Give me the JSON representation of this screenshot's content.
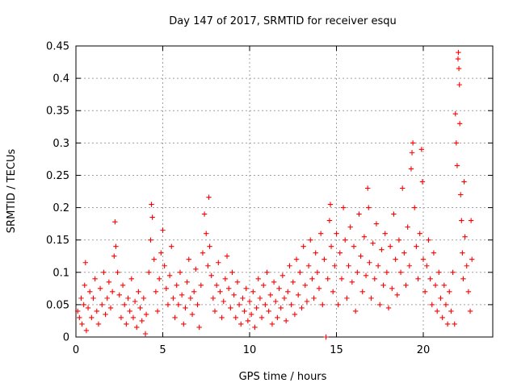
{
  "chart_data": {
    "type": "scatter",
    "title": "Day 147 of 2017, SRMTID for receiver esqu",
    "xlabel": "GPS time / hours",
    "ylabel": "SRMTID / TECUs",
    "xlim": [
      0,
      24
    ],
    "ylim": [
      0,
      0.45
    ],
    "x_ticks": [
      0,
      5,
      10,
      15,
      20
    ],
    "y_ticks": [
      0,
      0.05,
      0.1,
      0.15,
      0.2,
      0.25,
      0.3,
      0.35,
      0.4,
      0.45
    ],
    "x_tick_labels": [
      "0",
      "5",
      "10",
      "15",
      "20"
    ],
    "y_tick_labels": [
      "0",
      "0.05",
      "0.1",
      "0.15",
      "0.2",
      "0.25",
      "0.3",
      "0.35",
      "0.4",
      "0.45"
    ],
    "grid": true,
    "marker": "+",
    "series": [
      {
        "name": "SRMTID",
        "color": "#ff0000",
        "points": [
          [
            0.1,
            0.04
          ],
          [
            0.2,
            0.03
          ],
          [
            0.3,
            0.06
          ],
          [
            0.35,
            0.02
          ],
          [
            0.45,
            0.05
          ],
          [
            0.5,
            0.08
          ],
          [
            0.55,
            0.115
          ],
          [
            0.6,
            0.01
          ],
          [
            0.7,
            0.045
          ],
          [
            0.8,
            0.07
          ],
          [
            0.9,
            0.03
          ],
          [
            1.0,
            0.06
          ],
          [
            1.1,
            0.09
          ],
          [
            1.2,
            0.04
          ],
          [
            1.3,
            0.02
          ],
          [
            1.4,
            0.075
          ],
          [
            1.5,
            0.05
          ],
          [
            1.6,
            0.1
          ],
          [
            1.7,
            0.035
          ],
          [
            1.8,
            0.06
          ],
          [
            1.9,
            0.085
          ],
          [
            2.0,
            0.045
          ],
          [
            2.1,
            0.07
          ],
          [
            2.2,
            0.125
          ],
          [
            2.25,
            0.178
          ],
          [
            2.3,
            0.14
          ],
          [
            2.4,
            0.1
          ],
          [
            2.5,
            0.065
          ],
          [
            2.6,
            0.03
          ],
          [
            2.7,
            0.08
          ],
          [
            2.8,
            0.05
          ],
          [
            2.9,
            0.02
          ],
          [
            3.0,
            0.06
          ],
          [
            3.1,
            0.04
          ],
          [
            3.2,
            0.09
          ],
          [
            3.3,
            0.03
          ],
          [
            3.4,
            0.055
          ],
          [
            3.5,
            0.015
          ],
          [
            3.6,
            0.07
          ],
          [
            3.7,
            0.045
          ],
          [
            3.8,
            0.025
          ],
          [
            3.9,
            0.06
          ],
          [
            4.0,
            0.005
          ],
          [
            4.05,
            0.035
          ],
          [
            4.2,
            0.1
          ],
          [
            4.3,
            0.15
          ],
          [
            4.35,
            0.205
          ],
          [
            4.4,
            0.185
          ],
          [
            4.5,
            0.12
          ],
          [
            4.6,
            0.07
          ],
          [
            4.7,
            0.04
          ],
          [
            4.8,
            0.09
          ],
          [
            4.9,
            0.13
          ],
          [
            5.0,
            0.165
          ],
          [
            5.1,
            0.11
          ],
          [
            5.2,
            0.075
          ],
          [
            5.3,
            0.05
          ],
          [
            5.4,
            0.095
          ],
          [
            5.5,
            0.14
          ],
          [
            5.6,
            0.06
          ],
          [
            5.7,
            0.03
          ],
          [
            5.8,
            0.08
          ],
          [
            5.9,
            0.05
          ],
          [
            6.0,
            0.1
          ],
          [
            6.1,
            0.065
          ],
          [
            6.2,
            0.02
          ],
          [
            6.3,
            0.045
          ],
          [
            6.4,
            0.085
          ],
          [
            6.5,
            0.12
          ],
          [
            6.6,
            0.06
          ],
          [
            6.7,
            0.035
          ],
          [
            6.8,
            0.07
          ],
          [
            6.9,
            0.105
          ],
          [
            7.0,
            0.05
          ],
          [
            7.1,
            0.015
          ],
          [
            7.2,
            0.08
          ],
          [
            7.3,
            0.13
          ],
          [
            7.4,
            0.19
          ],
          [
            7.5,
            0.16
          ],
          [
            7.6,
            0.11
          ],
          [
            7.65,
            0.216
          ],
          [
            7.7,
            0.14
          ],
          [
            7.8,
            0.095
          ],
          [
            7.9,
            0.06
          ],
          [
            8.0,
            0.04
          ],
          [
            8.1,
            0.08
          ],
          [
            8.2,
            0.115
          ],
          [
            8.3,
            0.07
          ],
          [
            8.4,
            0.03
          ],
          [
            8.5,
            0.055
          ],
          [
            8.6,
            0.09
          ],
          [
            8.7,
            0.125
          ],
          [
            8.8,
            0.075
          ],
          [
            8.9,
            0.045
          ],
          [
            9.0,
            0.1
          ],
          [
            9.1,
            0.065
          ],
          [
            9.2,
            0.03
          ],
          [
            9.3,
            0.085
          ],
          [
            9.4,
            0.05
          ],
          [
            9.5,
            0.02
          ],
          [
            9.6,
            0.06
          ],
          [
            9.7,
            0.04
          ],
          [
            9.8,
            0.075
          ],
          [
            9.9,
            0.025
          ],
          [
            10.0,
            0.055
          ],
          [
            10.1,
            0.035
          ],
          [
            10.2,
            0.07
          ],
          [
            10.3,
            0.015
          ],
          [
            10.4,
            0.045
          ],
          [
            10.5,
            0.09
          ],
          [
            10.6,
            0.06
          ],
          [
            10.7,
            0.03
          ],
          [
            10.8,
            0.08
          ],
          [
            10.9,
            0.05
          ],
          [
            11.0,
            0.1
          ],
          [
            11.1,
            0.04
          ],
          [
            11.2,
            0.065
          ],
          [
            11.3,
            0.02
          ],
          [
            11.4,
            0.085
          ],
          [
            11.5,
            0.055
          ],
          [
            11.6,
            0.03
          ],
          [
            11.7,
            0.075
          ],
          [
            11.8,
            0.045
          ],
          [
            11.9,
            0.095
          ],
          [
            12.0,
            0.06
          ],
          [
            12.1,
            0.025
          ],
          [
            12.2,
            0.07
          ],
          [
            12.3,
            0.11
          ],
          [
            12.4,
            0.05
          ],
          [
            12.5,
            0.085
          ],
          [
            12.6,
            0.035
          ],
          [
            12.7,
            0.12
          ],
          [
            12.8,
            0.065
          ],
          [
            12.9,
            0.1
          ],
          [
            13.0,
            0.045
          ],
          [
            13.1,
            0.14
          ],
          [
            13.2,
            0.08
          ],
          [
            13.3,
            0.055
          ],
          [
            13.4,
            0.11
          ],
          [
            13.5,
            0.15
          ],
          [
            13.6,
            0.09
          ],
          [
            13.7,
            0.06
          ],
          [
            13.8,
            0.13
          ],
          [
            13.9,
            0.1
          ],
          [
            14.0,
            0.075
          ],
          [
            14.1,
            0.16
          ],
          [
            14.2,
            0.05
          ],
          [
            14.3,
            0.12
          ],
          [
            14.4,
            0.0
          ],
          [
            14.5,
            0.09
          ],
          [
            14.6,
            0.18
          ],
          [
            14.65,
            0.205
          ],
          [
            14.7,
            0.14
          ],
          [
            14.8,
            0.07
          ],
          [
            14.9,
            0.11
          ],
          [
            15.0,
            0.16
          ],
          [
            15.1,
            0.05
          ],
          [
            15.2,
            0.13
          ],
          [
            15.3,
            0.09
          ],
          [
            15.4,
            0.2
          ],
          [
            15.5,
            0.15
          ],
          [
            15.6,
            0.06
          ],
          [
            15.7,
            0.11
          ],
          [
            15.8,
            0.17
          ],
          [
            15.9,
            0.085
          ],
          [
            16.0,
            0.14
          ],
          [
            16.1,
            0.04
          ],
          [
            16.2,
            0.1
          ],
          [
            16.3,
            0.19
          ],
          [
            16.4,
            0.125
          ],
          [
            16.5,
            0.07
          ],
          [
            16.6,
            0.155
          ],
          [
            16.7,
            0.095
          ],
          [
            16.8,
            0.23
          ],
          [
            16.85,
            0.2
          ],
          [
            16.9,
            0.115
          ],
          [
            17.0,
            0.06
          ],
          [
            17.1,
            0.145
          ],
          [
            17.2,
            0.09
          ],
          [
            17.3,
            0.175
          ],
          [
            17.4,
            0.11
          ],
          [
            17.5,
            0.05
          ],
          [
            17.6,
            0.135
          ],
          [
            17.7,
            0.08
          ],
          [
            17.8,
            0.16
          ],
          [
            17.9,
            0.1
          ],
          [
            18.0,
            0.045
          ],
          [
            18.1,
            0.14
          ],
          [
            18.2,
            0.075
          ],
          [
            18.3,
            0.19
          ],
          [
            18.4,
            0.12
          ],
          [
            18.5,
            0.065
          ],
          [
            18.6,
            0.15
          ],
          [
            18.7,
            0.1
          ],
          [
            18.8,
            0.23
          ],
          [
            18.9,
            0.13
          ],
          [
            19.0,
            0.08
          ],
          [
            19.1,
            0.17
          ],
          [
            19.2,
            0.11
          ],
          [
            19.3,
            0.26
          ],
          [
            19.35,
            0.285
          ],
          [
            19.4,
            0.3
          ],
          [
            19.5,
            0.2
          ],
          [
            19.6,
            0.14
          ],
          [
            19.7,
            0.09
          ],
          [
            19.8,
            0.16
          ],
          [
            19.9,
            0.29
          ],
          [
            19.95,
            0.24
          ],
          [
            20.0,
            0.12
          ],
          [
            20.1,
            0.07
          ],
          [
            20.2,
            0.11
          ],
          [
            20.3,
            0.15
          ],
          [
            20.4,
            0.09
          ],
          [
            20.5,
            0.05
          ],
          [
            20.6,
            0.13
          ],
          [
            20.7,
            0.08
          ],
          [
            20.8,
            0.04
          ],
          [
            20.9,
            0.1
          ],
          [
            21.0,
            0.06
          ],
          [
            21.1,
            0.03
          ],
          [
            21.2,
            0.08
          ],
          [
            21.3,
            0.05
          ],
          [
            21.4,
            0.02
          ],
          [
            21.5,
            0.07
          ],
          [
            21.6,
            0.04
          ],
          [
            21.7,
            0.1
          ],
          [
            21.8,
            0.02
          ],
          [
            21.85,
            0.345
          ],
          [
            21.9,
            0.3
          ],
          [
            21.95,
            0.265
          ],
          [
            22.0,
            0.43
          ],
          [
            22.02,
            0.44
          ],
          [
            22.05,
            0.415
          ],
          [
            22.08,
            0.39
          ],
          [
            22.1,
            0.33
          ],
          [
            22.15,
            0.22
          ],
          [
            22.2,
            0.18
          ],
          [
            22.25,
            0.13
          ],
          [
            22.3,
            0.09
          ],
          [
            22.35,
            0.24
          ],
          [
            22.4,
            0.155
          ],
          [
            22.5,
            0.11
          ],
          [
            22.6,
            0.07
          ],
          [
            22.7,
            0.04
          ],
          [
            22.75,
            0.18
          ],
          [
            22.8,
            0.12
          ]
        ]
      }
    ]
  }
}
